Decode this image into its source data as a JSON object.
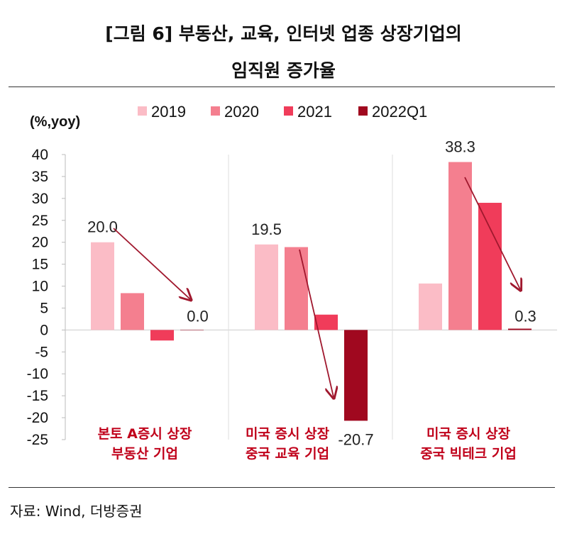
{
  "title_line1": "[그림 6] 부동산, 교육, 인터넷 업종 상장기업의",
  "title_line2": "임직원 증가율",
  "source": "자료: Wind, 더방증권",
  "chart_data": {
    "type": "bar",
    "ylabel": "(%,yoy)",
    "ylim": [
      -25,
      40
    ],
    "yticks": [
      40,
      35,
      30,
      25,
      20,
      15,
      10,
      5,
      0,
      -5,
      -10,
      -15,
      -20,
      -25
    ],
    "legend_position": "top",
    "categories": [
      [
        "본토 A증시 상장",
        "부동산 기업"
      ],
      [
        "미국 증시 상장",
        "중국 교육 기업"
      ],
      [
        "미국 증시 상장",
        "중국 빅테크 기업"
      ]
    ],
    "series": [
      {
        "name": "2019",
        "color": "#fbbcc6",
        "values": [
          20.0,
          19.5,
          10.6
        ]
      },
      {
        "name": "2020",
        "color": "#f47f8f",
        "values": [
          8.4,
          18.9,
          38.3
        ]
      },
      {
        "name": "2021",
        "color": "#f03c5a",
        "values": [
          -2.4,
          3.5,
          29.0
        ]
      },
      {
        "name": "2022Q1",
        "color": "#a0081f",
        "values": [
          0.0,
          -20.7,
          0.3
        ]
      }
    ],
    "data_labels": [
      {
        "category": 0,
        "series": 0,
        "text": "20.0"
      },
      {
        "category": 0,
        "series": 3,
        "text": "0.0"
      },
      {
        "category": 1,
        "series": 0,
        "text": "19.5"
      },
      {
        "category": 1,
        "series": 3,
        "text": "-20.7"
      },
      {
        "category": 2,
        "series": 1,
        "text": "38.3"
      },
      {
        "category": 2,
        "series": 3,
        "text": "0.3"
      }
    ],
    "category_label_color": "#c0001a",
    "arrow_color": "#a0182e"
  }
}
